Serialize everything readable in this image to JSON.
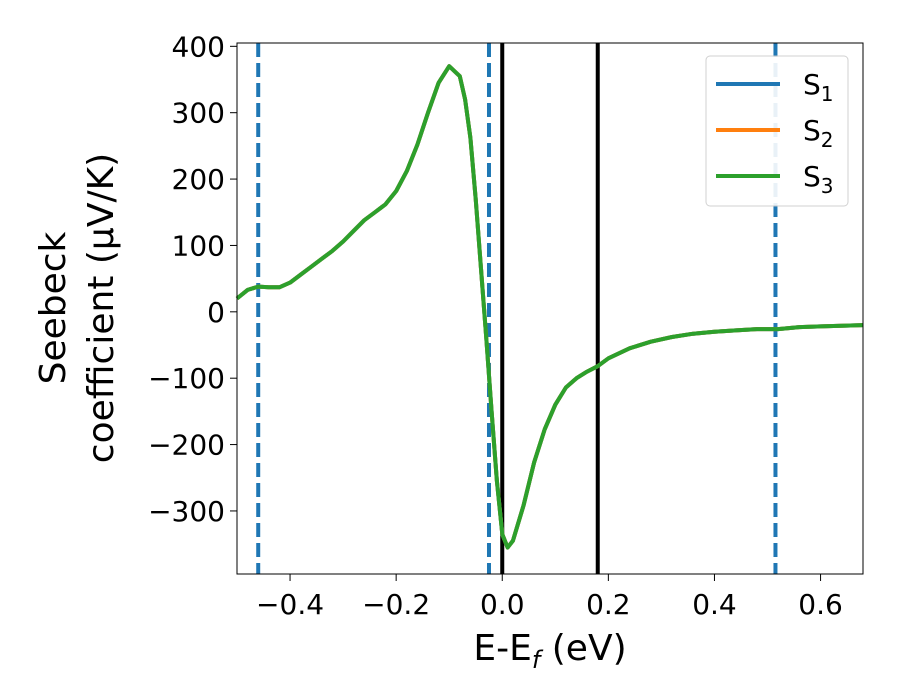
{
  "chart_data": {
    "type": "line",
    "title": "",
    "xlabel": "E-E",
    "xlabel_sub": "f",
    "xlabel_unit": " (eV)",
    "ylabel_line1": "Seebeck",
    "ylabel_line2": "coefficient  (μV/K)",
    "xlim": [
      -0.5,
      0.68
    ],
    "ylim": [
      -395,
      405
    ],
    "xticks": [
      -0.4,
      -0.2,
      0.0,
      0.2,
      0.4,
      0.6
    ],
    "xtick_labels": [
      "−0.4",
      "−0.2",
      "0.0",
      "0.2",
      "0.4",
      "0.6"
    ],
    "yticks": [
      400,
      300,
      200,
      100,
      0,
      -100,
      -200,
      -300
    ],
    "ytick_labels": [
      "400",
      "300",
      "200",
      "100",
      "0",
      "−100",
      "−200",
      "−300"
    ],
    "grid": false,
    "legend_position": "top-right",
    "series": [
      {
        "name": "S",
        "name_sub": "1",
        "color": "#1f77b4",
        "x": [
          -0.5,
          -0.48,
          -0.46,
          -0.44,
          -0.42,
          -0.4,
          -0.38,
          -0.36,
          -0.34,
          -0.32,
          -0.3,
          -0.28,
          -0.26,
          -0.24,
          -0.22,
          -0.2,
          -0.18,
          -0.16,
          -0.14,
          -0.12,
          -0.1,
          -0.08,
          -0.07,
          -0.06,
          -0.05,
          -0.04,
          -0.03,
          -0.02,
          -0.01,
          0.0,
          0.01,
          0.02,
          0.04,
          0.06,
          0.08,
          0.1,
          0.12,
          0.14,
          0.16,
          0.18,
          0.2,
          0.24,
          0.28,
          0.32,
          0.36,
          0.4,
          0.44,
          0.48,
          0.52,
          0.56,
          0.6,
          0.64,
          0.68
        ],
        "y": [
          20,
          33,
          38,
          37,
          37,
          44,
          56,
          68,
          80,
          92,
          106,
          122,
          138,
          150,
          162,
          182,
          212,
          252,
          300,
          345,
          370,
          355,
          320,
          262,
          170,
          65,
          -40,
          -150,
          -255,
          -335,
          -355,
          -345,
          -292,
          -227,
          -177,
          -140,
          -114,
          -100,
          -90,
          -82,
          -70,
          -55,
          -45,
          -38,
          -33,
          -30,
          -28,
          -26,
          -26,
          -23,
          -22,
          -21,
          -20
        ]
      },
      {
        "name": "S",
        "name_sub": "2",
        "color": "#ff7f0e",
        "x": [
          -0.5,
          -0.48,
          -0.46,
          -0.44,
          -0.42,
          -0.4,
          -0.38,
          -0.36,
          -0.34,
          -0.32,
          -0.3,
          -0.28,
          -0.26,
          -0.24,
          -0.22,
          -0.2,
          -0.18,
          -0.16,
          -0.14,
          -0.12,
          -0.1,
          -0.08,
          -0.07,
          -0.06,
          -0.05,
          -0.04,
          -0.03,
          -0.02,
          -0.01,
          0.0,
          0.01,
          0.02,
          0.04,
          0.06,
          0.08,
          0.1,
          0.12,
          0.14,
          0.16,
          0.18,
          0.2,
          0.24,
          0.28,
          0.32,
          0.36,
          0.4,
          0.44,
          0.48,
          0.52,
          0.56,
          0.6,
          0.64,
          0.68
        ],
        "y": [
          20,
          33,
          38,
          37,
          37,
          44,
          56,
          68,
          80,
          92,
          106,
          122,
          138,
          150,
          162,
          182,
          212,
          252,
          300,
          345,
          370,
          355,
          320,
          262,
          170,
          65,
          -40,
          -150,
          -255,
          -335,
          -355,
          -345,
          -292,
          -227,
          -177,
          -140,
          -114,
          -100,
          -90,
          -82,
          -70,
          -55,
          -45,
          -38,
          -33,
          -30,
          -28,
          -26,
          -26,
          -23,
          -22,
          -21,
          -20
        ]
      },
      {
        "name": "S",
        "name_sub": "3",
        "color": "#2ca02c",
        "x": [
          -0.5,
          -0.48,
          -0.46,
          -0.44,
          -0.42,
          -0.4,
          -0.38,
          -0.36,
          -0.34,
          -0.32,
          -0.3,
          -0.28,
          -0.26,
          -0.24,
          -0.22,
          -0.2,
          -0.18,
          -0.16,
          -0.14,
          -0.12,
          -0.1,
          -0.08,
          -0.07,
          -0.06,
          -0.05,
          -0.04,
          -0.03,
          -0.02,
          -0.01,
          0.0,
          0.01,
          0.02,
          0.04,
          0.06,
          0.08,
          0.1,
          0.12,
          0.14,
          0.16,
          0.18,
          0.2,
          0.24,
          0.28,
          0.32,
          0.36,
          0.4,
          0.44,
          0.48,
          0.52,
          0.56,
          0.6,
          0.64,
          0.68
        ],
        "y": [
          20,
          33,
          38,
          37,
          37,
          44,
          56,
          68,
          80,
          92,
          106,
          122,
          138,
          150,
          162,
          182,
          212,
          252,
          300,
          345,
          370,
          355,
          320,
          262,
          170,
          65,
          -40,
          -150,
          -255,
          -335,
          -355,
          -345,
          -292,
          -227,
          -177,
          -140,
          -114,
          -100,
          -90,
          -82,
          -70,
          -55,
          -45,
          -38,
          -33,
          -30,
          -28,
          -26,
          -26,
          -23,
          -22,
          -21,
          -20
        ]
      }
    ],
    "vlines": [
      {
        "x": -0.46,
        "style": "dashed",
        "color": "#1f77b4"
      },
      {
        "x": -0.025,
        "style": "dashed",
        "color": "#1f77b4"
      },
      {
        "x": 0.515,
        "style": "dashed",
        "color": "#1f77b4"
      },
      {
        "x": 0.0,
        "style": "solid",
        "color": "#000000"
      },
      {
        "x": 0.18,
        "style": "solid",
        "color": "#000000"
      }
    ]
  }
}
